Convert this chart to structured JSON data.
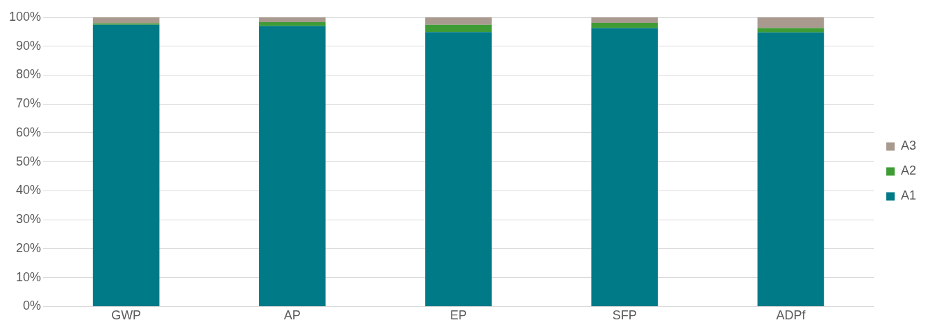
{
  "chart_data": {
    "type": "bar",
    "stacked": true,
    "categories": [
      "GWP",
      "AP",
      "EP",
      "SFP",
      "ADPf"
    ],
    "series": [
      {
        "name": "A1",
        "color": "#007a87",
        "values": [
          97.4,
          97.0,
          94.9,
          96.3,
          94.8
        ]
      },
      {
        "name": "A2",
        "color": "#3f9c35",
        "values": [
          0.5,
          1.3,
          2.5,
          1.8,
          1.5
        ]
      },
      {
        "name": "A3",
        "color": "#a89a8f",
        "values": [
          2.1,
          1.7,
          2.6,
          1.9,
          3.7
        ]
      }
    ],
    "ylim": [
      0,
      100
    ],
    "yticks": [
      {
        "value": 0,
        "label": "0%"
      },
      {
        "value": 10,
        "label": "10%"
      },
      {
        "value": 20,
        "label": "20%"
      },
      {
        "value": 30,
        "label": "30%"
      },
      {
        "value": 40,
        "label": "40%"
      },
      {
        "value": 50,
        "label": "50%"
      },
      {
        "value": 60,
        "label": "60%"
      },
      {
        "value": 70,
        "label": "70%"
      },
      {
        "value": 80,
        "label": "80%"
      },
      {
        "value": 90,
        "label": "90%"
      },
      {
        "value": 100,
        "label": "100%"
      }
    ],
    "grid": "y",
    "legend": "right"
  }
}
